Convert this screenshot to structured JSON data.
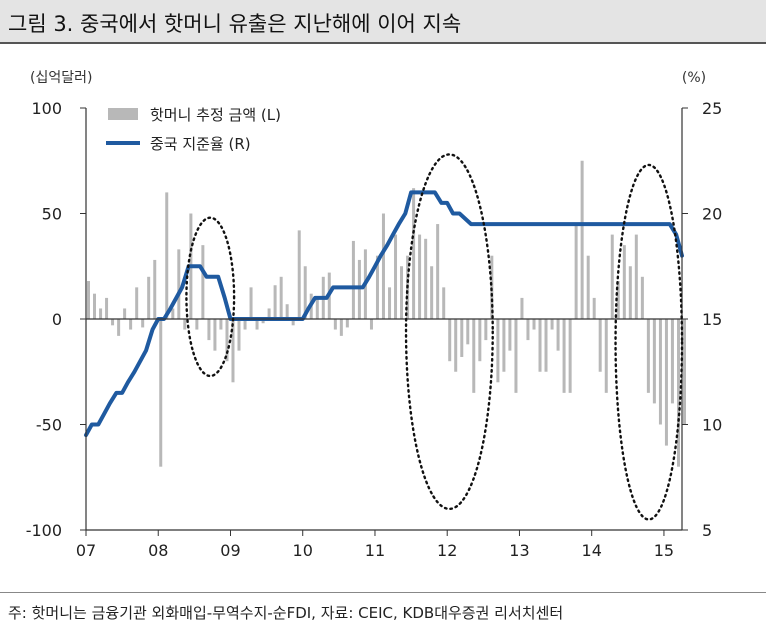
{
  "title": "그림 3. 중국에서 핫머니 유출은 지난해에 이어 지속",
  "footnote": "주: 핫머니는 금융기관 외화매입-무역수지-순FDI, 자료: CEIC, KDB대우증권 리서치센터",
  "chart_data": {
    "type": "bar+line",
    "left_unit": "(십억달러)",
    "right_unit": "(%)",
    "left_axis": {
      "ylim": [
        -100,
        100
      ],
      "ticks": [
        100,
        50,
        0,
        -50,
        -100
      ]
    },
    "right_axis": {
      "ylim": [
        5,
        25
      ],
      "ticks": [
        25,
        20,
        15,
        10,
        5
      ]
    },
    "x_ticks": [
      "07",
      "08",
      "09",
      "10",
      "11",
      "12",
      "13",
      "14",
      "15"
    ],
    "x_range": [
      2007.0,
      2015.25
    ],
    "series": [
      {
        "name": "핫머니 추정 금액 (L)",
        "type": "bar",
        "axis": "left",
        "color": "#b8b8b8",
        "x": [
          2007.0,
          2007.083,
          2007.167,
          2007.25,
          2007.333,
          2007.417,
          2007.5,
          2007.583,
          2007.667,
          2007.75,
          2007.833,
          2007.917,
          2008.0,
          2008.083,
          2008.167,
          2008.25,
          2008.333,
          2008.417,
          2008.5,
          2008.583,
          2008.667,
          2008.75,
          2008.833,
          2008.917,
          2009.0,
          2009.083,
          2009.167,
          2009.25,
          2009.333,
          2009.417,
          2009.5,
          2009.583,
          2009.667,
          2009.75,
          2009.833,
          2009.917,
          2010.0,
          2010.083,
          2010.167,
          2010.25,
          2010.333,
          2010.417,
          2010.5,
          2010.583,
          2010.667,
          2010.75,
          2010.833,
          2010.917,
          2011.0,
          2011.083,
          2011.167,
          2011.25,
          2011.333,
          2011.417,
          2011.5,
          2011.583,
          2011.667,
          2011.75,
          2011.833,
          2011.917,
          2012.0,
          2012.083,
          2012.167,
          2012.25,
          2012.333,
          2012.417,
          2012.5,
          2012.583,
          2012.667,
          2012.75,
          2012.833,
          2012.917,
          2013.0,
          2013.083,
          2013.167,
          2013.25,
          2013.333,
          2013.417,
          2013.5,
          2013.583,
          2013.667,
          2013.75,
          2013.833,
          2013.917,
          2014.0,
          2014.083,
          2014.167,
          2014.25,
          2014.333,
          2014.417,
          2014.5,
          2014.583,
          2014.667,
          2014.75,
          2014.833,
          2014.917,
          2015.0,
          2015.083,
          2015.167,
          2015.25
        ],
        "values": [
          18,
          12,
          5,
          10,
          -3,
          -8,
          5,
          -5,
          15,
          -4,
          20,
          28,
          -70,
          60,
          5,
          33,
          -5,
          50,
          -5,
          35,
          -10,
          -15,
          -5,
          -20,
          -30,
          -15,
          -5,
          15,
          -5,
          -2,
          5,
          16,
          20,
          7,
          -3,
          42,
          25,
          12,
          10,
          20,
          22,
          -5,
          -8,
          -4,
          37,
          28,
          33,
          -5,
          30,
          50,
          15,
          40,
          25,
          30,
          62,
          40,
          38,
          25,
          45,
          15,
          -20,
          -25,
          -18,
          -12,
          -35,
          -20,
          -10,
          30,
          -30,
          -25,
          -15,
          -35,
          10,
          -10,
          -5,
          -25,
          -25,
          -5,
          -15,
          -35,
          -35,
          45,
          75,
          30,
          10,
          -25,
          -35,
          40,
          18,
          35,
          25,
          40,
          20,
          -35,
          -40,
          -50,
          -60,
          -40,
          -70,
          -50
        ]
      },
      {
        "name": "중국 지준율 (R)",
        "type": "line",
        "axis": "right",
        "color": "#1f5aa0",
        "x": [
          2007.0,
          2007.08,
          2007.17,
          2007.25,
          2007.33,
          2007.42,
          2007.5,
          2007.58,
          2007.67,
          2007.75,
          2007.83,
          2007.92,
          2008.0,
          2008.08,
          2008.17,
          2008.25,
          2008.33,
          2008.42,
          2008.5,
          2008.58,
          2008.67,
          2008.75,
          2008.83,
          2008.92,
          2009.0,
          2010.0,
          2010.08,
          2010.17,
          2010.33,
          2010.42,
          2010.5,
          2010.83,
          2010.92,
          2011.0,
          2011.08,
          2011.17,
          2011.25,
          2011.33,
          2011.42,
          2011.5,
          2011.58,
          2011.67,
          2011.75,
          2011.83,
          2011.92,
          2012.0,
          2012.08,
          2012.17,
          2012.33,
          2012.5,
          2014.33,
          2015.0,
          2015.08,
          2015.17,
          2015.25
        ],
        "values": [
          9.5,
          10,
          10,
          10.5,
          11,
          11.5,
          11.5,
          12,
          12.5,
          13,
          13.5,
          14.5,
          15,
          15,
          15.5,
          16,
          16.5,
          17.5,
          17.5,
          17.5,
          17,
          17,
          17,
          16,
          15,
          15,
          15.5,
          16,
          16,
          16.5,
          16.5,
          16.5,
          17,
          17.5,
          18,
          18.5,
          19,
          19.5,
          20,
          21,
          21,
          21,
          21,
          21,
          20.5,
          20.5,
          20,
          20,
          19.5,
          19.5,
          19.5,
          19.5,
          19.5,
          19,
          18
        ]
      }
    ],
    "annotations": [
      {
        "type": "ellipse",
        "x_center": 2008.72,
        "x_half_width": 0.33,
        "y_top": 19.8,
        "y_bottom": 12.3
      },
      {
        "type": "ellipse",
        "x_center": 2012.03,
        "x_half_width": 0.6,
        "y_top": 22.8,
        "y_bottom": 6.0
      },
      {
        "type": "ellipse",
        "x_center": 2014.79,
        "x_half_width": 0.46,
        "y_top": 22.3,
        "y_bottom": 5.5
      }
    ]
  }
}
